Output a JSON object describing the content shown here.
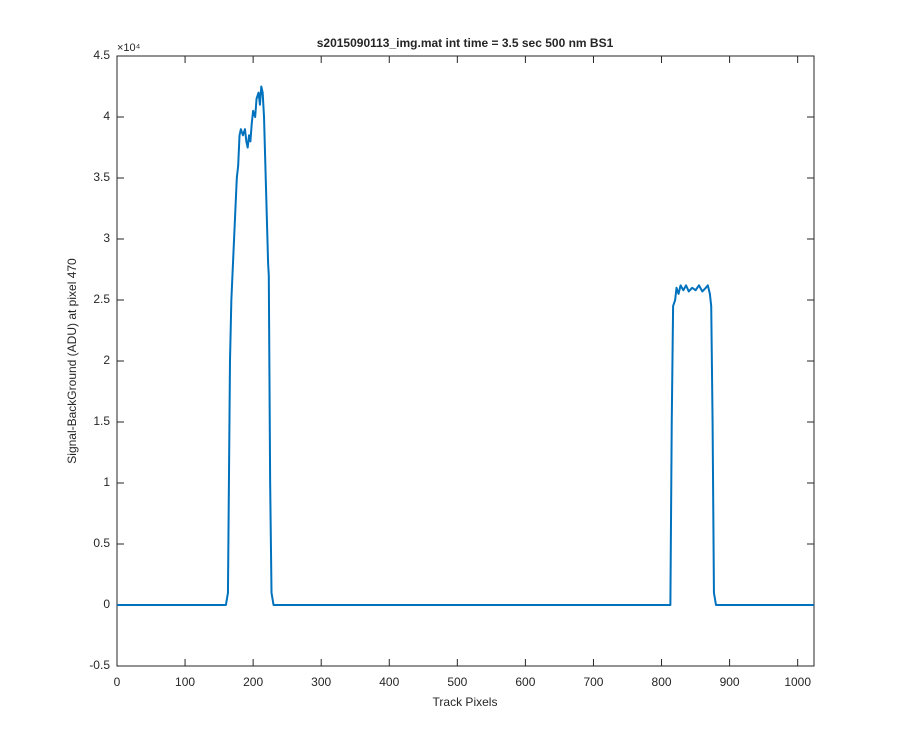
{
  "chart_data": {
    "type": "line",
    "title": "s2015090113_img.mat int time = 3.5 sec  500 nm BS1",
    "x_label": "Track Pixels",
    "y_label": "Signal-BackGround (ADU) at pixel 470",
    "y_exponent_label": "×10⁴",
    "color": "#0072bd",
    "x": [
      0,
      100,
      160,
      163,
      166,
      168,
      172,
      176,
      178,
      180,
      182,
      185,
      188,
      190,
      192,
      194,
      196,
      198,
      200,
      203,
      205,
      208,
      210,
      212,
      214,
      216,
      218,
      220,
      222,
      223,
      225,
      227,
      230,
      400,
      600,
      813,
      815,
      817,
      820,
      822,
      825,
      828,
      832,
      836,
      840,
      845,
      850,
      855,
      860,
      865,
      868,
      871,
      873,
      875,
      877,
      880,
      1000,
      1024
    ],
    "values": [
      0,
      0,
      0,
      0.1,
      2.0,
      2.5,
      3.0,
      3.5,
      3.6,
      3.85,
      3.9,
      3.85,
      3.9,
      3.8,
      3.75,
      3.85,
      3.8,
      3.95,
      4.05,
      4.0,
      4.15,
      4.2,
      4.1,
      4.25,
      4.2,
      4.0,
      3.6,
      3.2,
      2.8,
      2.7,
      1.0,
      0.1,
      0,
      0,
      0,
      0,
      1.5,
      2.45,
      2.5,
      2.6,
      2.55,
      2.62,
      2.58,
      2.62,
      2.57,
      2.6,
      2.58,
      2.62,
      2.57,
      2.6,
      2.62,
      2.55,
      2.45,
      1.5,
      0.1,
      0,
      0,
      0
    ],
    "xlim": [
      0,
      1024
    ],
    "xticks": [
      0,
      100,
      200,
      300,
      400,
      500,
      600,
      700,
      800,
      900,
      1000
    ],
    "ylim": [
      -0.5,
      4.5
    ],
    "yticks": [
      -0.5,
      0,
      0.5,
      1,
      1.5,
      2,
      2.5,
      3,
      3.5,
      4,
      4.5
    ]
  }
}
